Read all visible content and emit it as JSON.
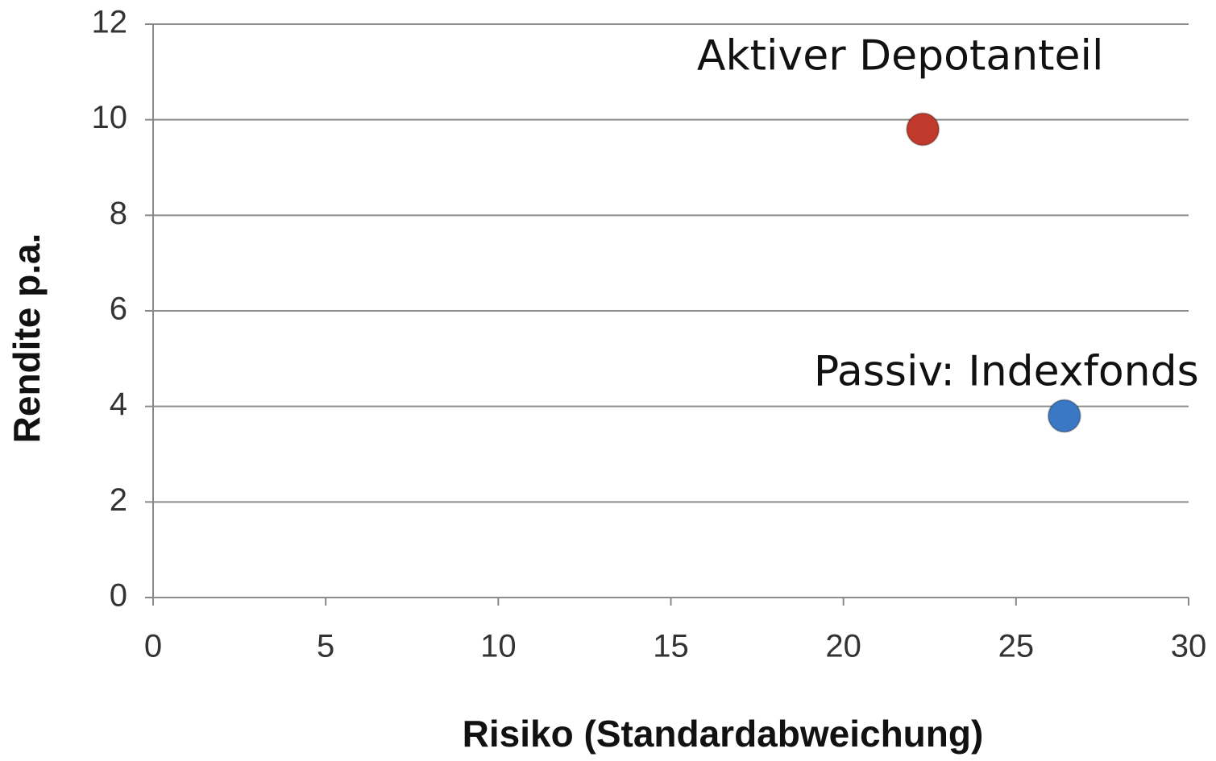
{
  "chart_data": {
    "type": "scatter",
    "xlabel": "Risiko (Standardabweichung)",
    "ylabel": "Rendite  p.a.",
    "series": [
      {
        "name": "Aktiver Depotanteil",
        "color": "#c0392b",
        "x": [
          22.3
        ],
        "values": [
          9.8
        ]
      },
      {
        "name": "Passiv: Indexfonds",
        "color": "#3a78c4",
        "x": [
          26.4
        ],
        "values": [
          3.8
        ]
      }
    ],
    "xlim": [
      0,
      30
    ],
    "xticks": [
      0,
      5,
      10,
      15,
      20,
      25,
      30
    ],
    "ylim": [
      0,
      12
    ],
    "yticks": [
      0,
      2,
      4,
      6,
      8,
      10,
      12
    ],
    "grid": true
  }
}
